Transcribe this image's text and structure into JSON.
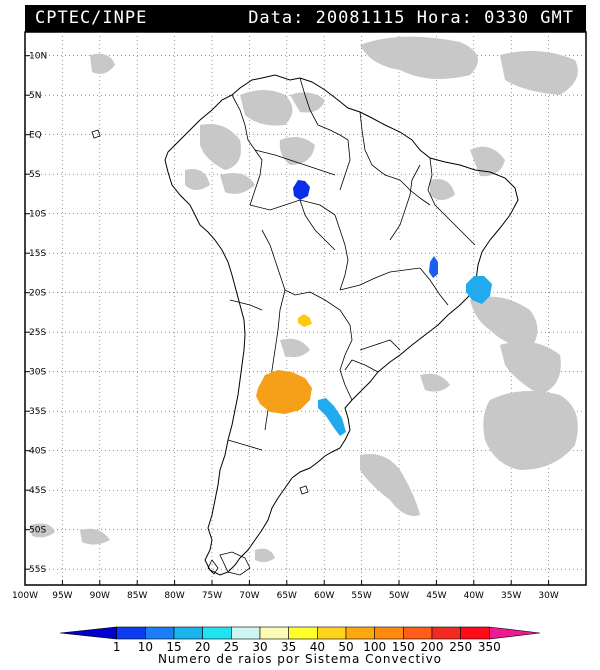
{
  "header": {
    "left_text": "CPTEC/INPE",
    "right_text": "Data: 20081115 Hora: 0330 GMT"
  },
  "map": {
    "lon_labels": [
      "100W",
      "95W",
      "90W",
      "85W",
      "80W",
      "75W",
      "70W",
      "65W",
      "60W",
      "55W",
      "50W",
      "45W",
      "40W",
      "35W",
      "30W"
    ],
    "lat_labels": [
      "10N",
      "5N",
      "EQ",
      "5S",
      "10S",
      "15S",
      "20S",
      "25S",
      "30S",
      "35S",
      "40S",
      "45S",
      "50S",
      "55S"
    ]
  },
  "colorbar": {
    "labels": [
      "1",
      "10",
      "15",
      "20",
      "25",
      "30",
      "35",
      "40",
      "50",
      "100",
      "150",
      "200",
      "250",
      "350"
    ],
    "colors": [
      "#0000cc",
      "#0a3df0",
      "#1a7ef6",
      "#19b4ee",
      "#22e2f2",
      "#cdf5f3",
      "#fbfbb5",
      "#ffff2c",
      "#ffd21c",
      "#ffa812",
      "#ff8a10",
      "#ff5d1a",
      "#f22a24",
      "#ff0a18",
      "#ee1a90"
    ],
    "caption": "Numero de raios por Sistema Convectivo"
  },
  "systems": [
    {
      "label": "blue cluster",
      "color": "#0a2ee8"
    },
    {
      "label": "blue cluster",
      "color": "#1a5ef2"
    },
    {
      "label": "cyan cluster",
      "color": "#22aaee"
    },
    {
      "label": "yellow cluster",
      "color": "#ffc812"
    },
    {
      "label": "orange cluster",
      "color": "#f5a018"
    },
    {
      "label": "cyan cluster",
      "color": "#22aaee"
    }
  ]
}
